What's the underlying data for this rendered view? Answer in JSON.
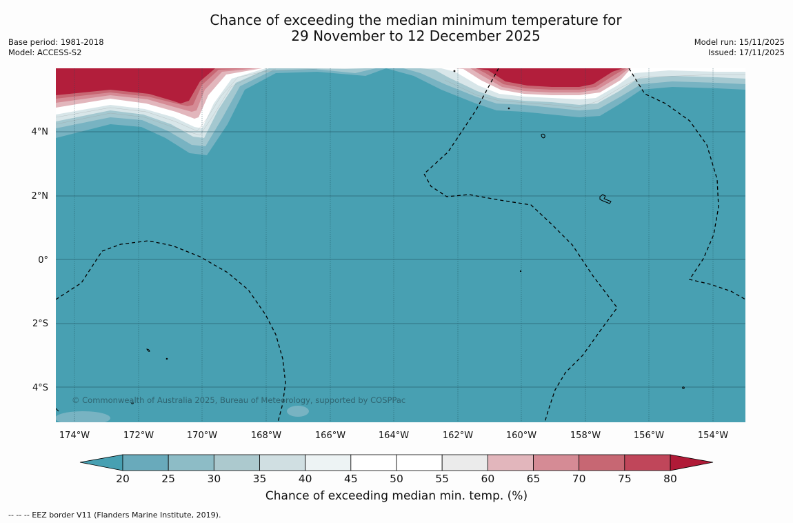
{
  "title": {
    "line1": "Chance of exceeding the median minimum temperature for",
    "line2": "29 November to 12 December 2025"
  },
  "info_left": {
    "base_period": "Base period: 1981-2018",
    "model": "Model: ACCESS-S2"
  },
  "info_right": {
    "model_run": "Model run: 15/11/2025",
    "issued": "Issued: 17/11/2025"
  },
  "map": {
    "region": "Central Pacific",
    "lon_labels": [
      "174°W",
      "172°W",
      "170°W",
      "168°W",
      "166°W",
      "164°W",
      "162°W",
      "160°W",
      "158°W",
      "156°W",
      "154°W"
    ],
    "lat_labels": [
      "4°N",
      "2°N",
      "0°",
      "2°S",
      "4°S"
    ],
    "copyright": "© Commonwealth of Australia 2025, Bureau of Meteorology, supported by COSPPac",
    "colors": {
      "background_class": "#48a0b2",
      "hot": "#b21e3b",
      "gridline": "#1f4f5c",
      "eez_border": "#000000"
    }
  },
  "colorbar": {
    "ticks": [
      "20",
      "25",
      "30",
      "35",
      "40",
      "45",
      "50",
      "55",
      "60",
      "65",
      "70",
      "75",
      "80"
    ],
    "segment_colors": [
      "#47a0b2",
      "#69aabb",
      "#8dbcc6",
      "#acc9ce",
      "#d0dfe2",
      "#edf3f4",
      "#ffffff",
      "#ffffff",
      "#ebebeb",
      "#e2b6bc",
      "#d58b95",
      "#c76773",
      "#c0465a",
      "#b01a37"
    ],
    "label": "Chance of exceeding median min. temp. (%)"
  },
  "footer": "-- -- -- EEZ border V11 (Flanders Marine Institute, 2019)."
}
